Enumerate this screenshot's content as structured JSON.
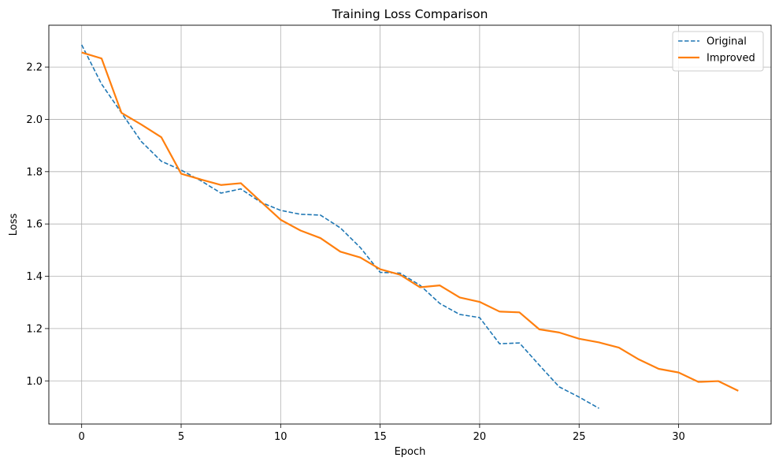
{
  "chart_data": {
    "type": "line",
    "title": "Training Loss Comparison",
    "xlabel": "Epoch",
    "ylabel": "Loss",
    "xlim": [
      -1.65,
      34.65
    ],
    "ylim": [
      0.835,
      2.36
    ],
    "xticks": [
      0,
      5,
      10,
      15,
      20,
      25,
      30
    ],
    "yticks": [
      1.0,
      1.2,
      1.4,
      1.6,
      1.8,
      2.0,
      2.2
    ],
    "grid": true,
    "legend_position": "top-right",
    "series": [
      {
        "name": "Original",
        "color": "#1f77b4",
        "style": "dashed",
        "x": [
          0,
          1,
          2,
          3,
          4,
          5,
          6,
          7,
          8,
          9,
          10,
          11,
          12,
          13,
          14,
          15,
          16,
          17,
          18,
          19,
          20,
          21,
          22,
          23,
          24,
          25,
          26
        ],
        "values": [
          2.285,
          2.135,
          2.025,
          1.915,
          1.84,
          1.806,
          1.765,
          1.718,
          1.734,
          1.683,
          1.652,
          1.637,
          1.634,
          1.585,
          1.51,
          1.415,
          1.412,
          1.366,
          1.296,
          1.254,
          1.242,
          1.142,
          1.145,
          1.06,
          0.977,
          0.938,
          0.895
        ]
      },
      {
        "name": "Improved",
        "color": "#ff7f0e",
        "style": "solid",
        "x": [
          0,
          1,
          2,
          3,
          4,
          5,
          6,
          7,
          8,
          9,
          10,
          11,
          12,
          13,
          14,
          15,
          16,
          17,
          18,
          19,
          20,
          21,
          22,
          23,
          24,
          25,
          26,
          27,
          28,
          29,
          30,
          31,
          32,
          33
        ],
        "values": [
          2.256,
          2.233,
          2.025,
          1.98,
          1.932,
          1.792,
          1.77,
          1.749,
          1.756,
          1.686,
          1.616,
          1.575,
          1.546,
          1.494,
          1.472,
          1.427,
          1.406,
          1.358,
          1.365,
          1.319,
          1.302,
          1.265,
          1.262,
          1.197,
          1.185,
          1.161,
          1.147,
          1.127,
          1.082,
          1.046,
          1.032,
          0.996,
          0.999,
          0.962
        ]
      }
    ]
  }
}
